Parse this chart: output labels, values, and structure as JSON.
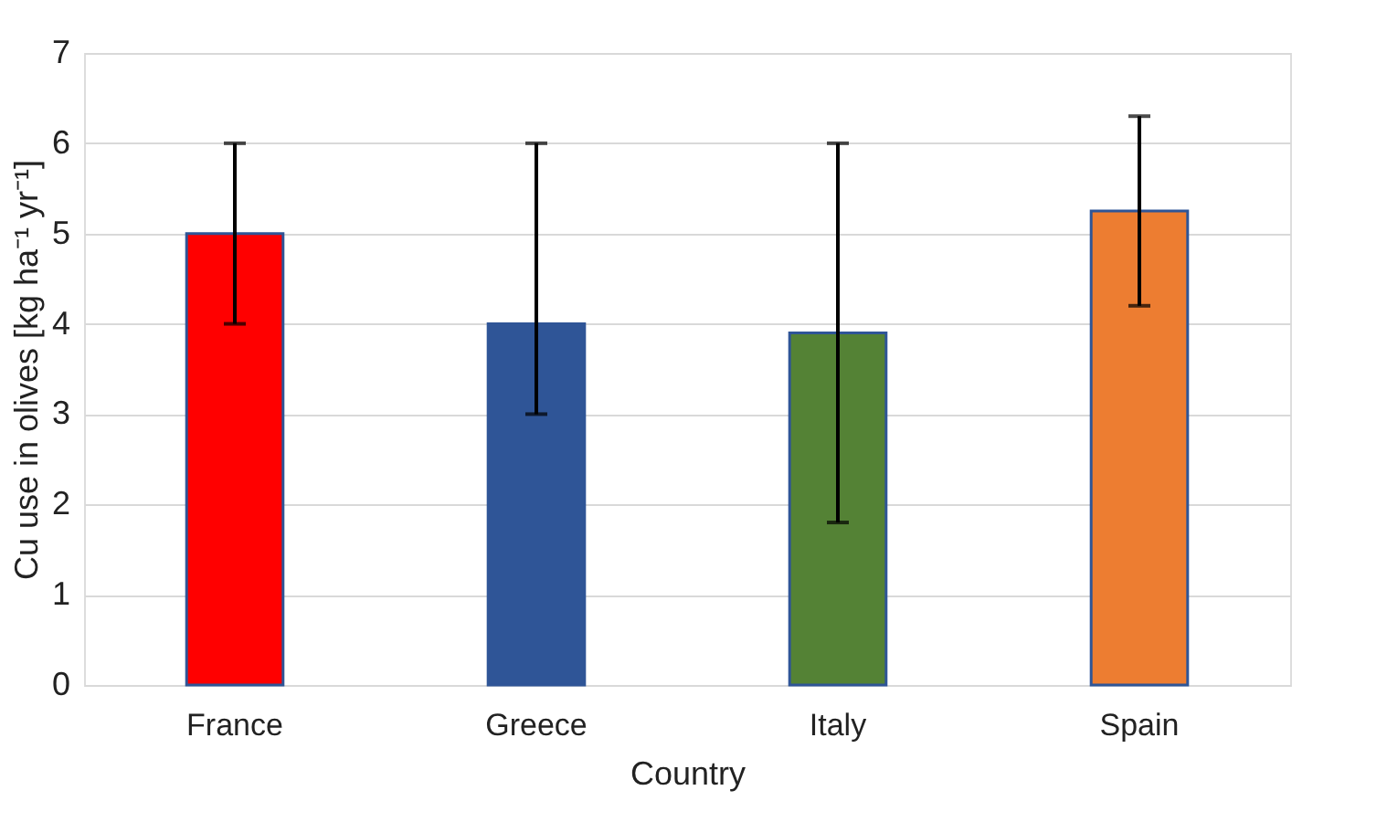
{
  "chart_data": {
    "type": "bar",
    "xlabel": "Country",
    "ylabel": "Cu use in olives [kg ha⁻¹ yr⁻¹]",
    "categories": [
      "France",
      "Greece",
      "Italy",
      "Spain"
    ],
    "values": [
      5,
      4,
      3.9,
      5.25
    ],
    "colors": [
      "#ff0000",
      "#2f5597",
      "#548235",
      "#ed7d31"
    ],
    "errors": [
      [
        4,
        6
      ],
      [
        3,
        6
      ],
      [
        1.8,
        6
      ],
      [
        4.2,
        6.3
      ]
    ],
    "ylim": [
      0,
      7
    ],
    "yticks": [
      0,
      1,
      2,
      3,
      4,
      5,
      6,
      7
    ],
    "grid": "y"
  }
}
